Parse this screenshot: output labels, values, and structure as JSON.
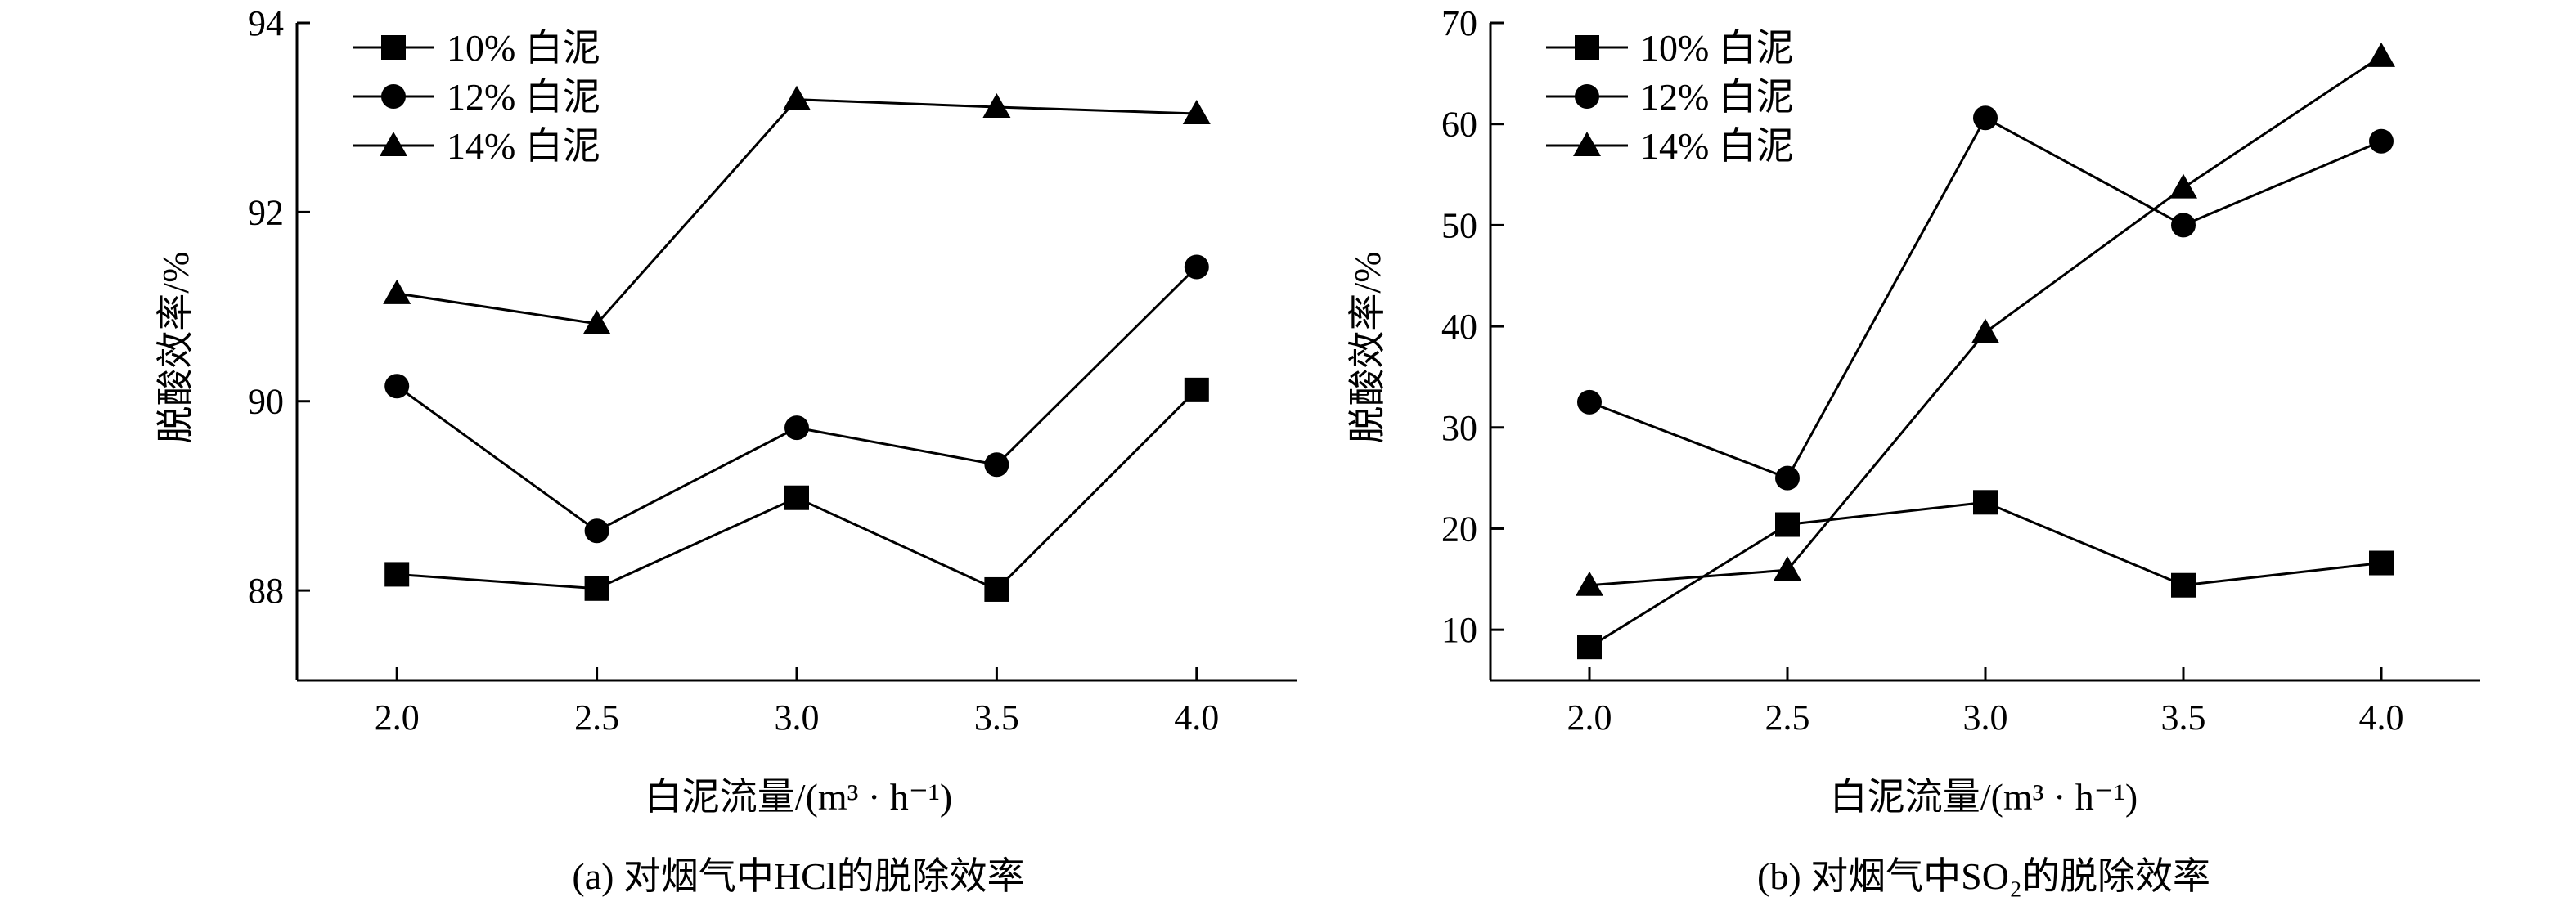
{
  "charts": [
    {
      "id": "a",
      "caption": "(a) 对烟气中HCl的脱除效率",
      "ylabel": "脱酸效率/%",
      "xlabel": "白泥流量/(m³ · h⁻¹)"
    },
    {
      "id": "b",
      "caption": "(b) 对烟气中SO₂的脱除效率",
      "ylabel": "脱酸效率/%",
      "xlabel": "白泥流量/(m³ · h⁻¹)"
    }
  ],
  "chart_data": [
    {
      "type": "line",
      "x": [
        2.0,
        2.5,
        3.0,
        3.5,
        4.0
      ],
      "x_tick_labels": [
        "2.0",
        "2.5",
        "3.0",
        "3.5",
        "4.0"
      ],
      "xlim": [
        1.75,
        4.25
      ],
      "ylim": [
        87.05,
        94
      ],
      "y_ticks": [
        88,
        90,
        92,
        94
      ],
      "y_tick_labels": [
        "88",
        "90",
        "92",
        "94"
      ],
      "xlabel": "白泥流量/(m³ · h⁻¹)",
      "ylabel": "脱酸效率/%",
      "grid": false,
      "legend_position": "top-left",
      "series": [
        {
          "name": "10% 白泥",
          "marker": "square",
          "values": [
            88.17,
            88.02,
            88.98,
            88.01,
            90.12
          ]
        },
        {
          "name": "12% 白泥",
          "marker": "circle",
          "values": [
            90.16,
            88.63,
            89.72,
            89.33,
            91.42
          ]
        },
        {
          "name": "14% 白泥",
          "marker": "triangle",
          "values": [
            91.14,
            90.82,
            93.19,
            93.11,
            93.04
          ]
        }
      ]
    },
    {
      "type": "line",
      "x": [
        2.0,
        2.5,
        3.0,
        3.5,
        4.0
      ],
      "x_tick_labels": [
        "2.0",
        "2.5",
        "3.0",
        "3.5",
        "4.0"
      ],
      "xlim": [
        1.75,
        4.25
      ],
      "ylim": [
        5,
        70
      ],
      "y_ticks": [
        10,
        20,
        30,
        40,
        50,
        60,
        70
      ],
      "y_tick_labels": [
        "10",
        "20",
        "30",
        "40",
        "50",
        "60",
        "70"
      ],
      "xlabel": "白泥流量/(m³ · h⁻¹)",
      "ylabel": "脱酸效率/%",
      "grid": false,
      "legend_position": "top-left",
      "series": [
        {
          "name": "10% 白泥",
          "marker": "square",
          "values": [
            8.3,
            20.4,
            22.6,
            14.4,
            16.6
          ]
        },
        {
          "name": "12% 白泥",
          "marker": "circle",
          "values": [
            32.5,
            25.0,
            60.6,
            50.0,
            58.3
          ]
        },
        {
          "name": "14% 白泥",
          "marker": "triangle",
          "values": [
            14.4,
            15.9,
            39.4,
            53.7,
            66.7
          ]
        }
      ]
    }
  ]
}
